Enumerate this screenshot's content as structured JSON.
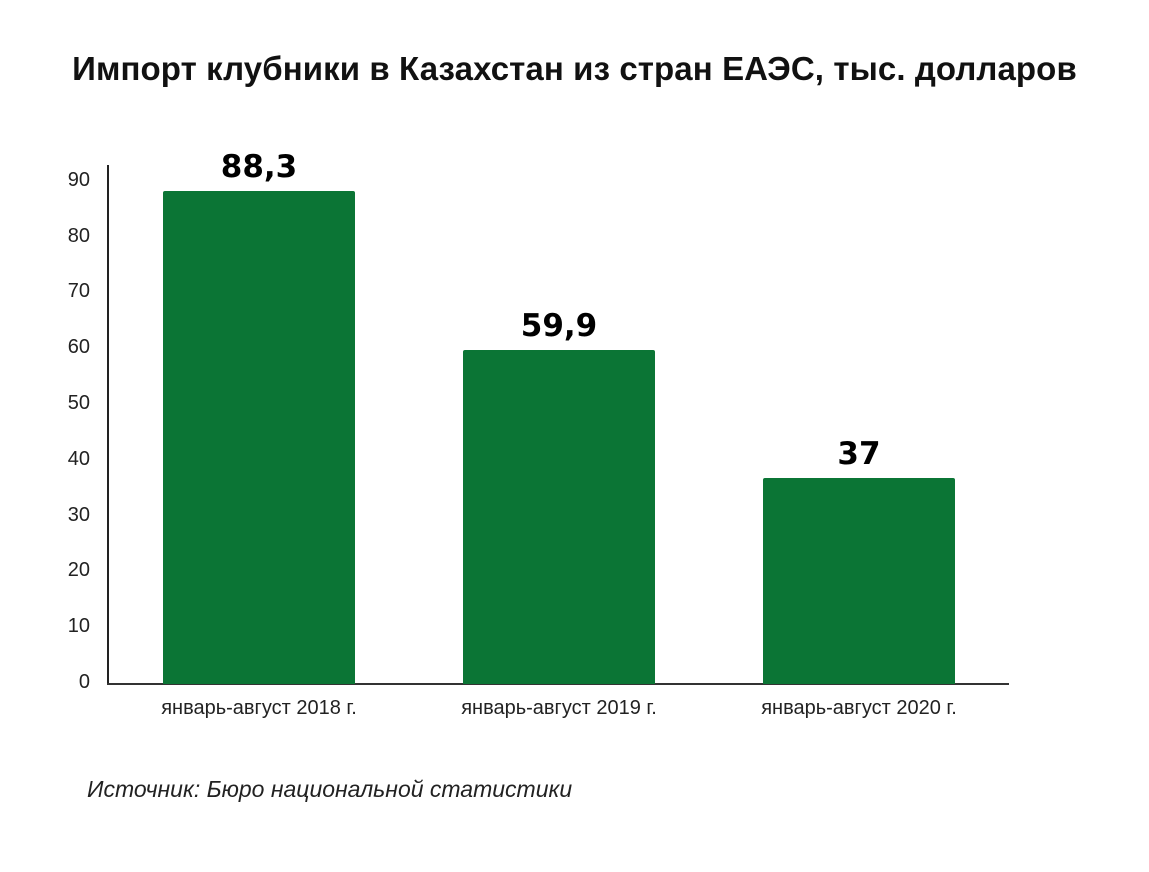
{
  "title": "Импорт клубники в Казахстан из стран ЕАЭС, тыс. долларов",
  "source": "Источник: Бюро национальной статистики",
  "colors": {
    "bar": "#0b7535",
    "axis": "#222222",
    "text": "#000000",
    "background": "#ffffff"
  },
  "y_ticks": [
    "0",
    "10",
    "20",
    "30",
    "40",
    "50",
    "60",
    "70",
    "80",
    "90"
  ],
  "bars": [
    {
      "category": "январь-август 2018 г.",
      "value": 88.3,
      "label": "88,3"
    },
    {
      "category": "январь-август 2019 г.",
      "value": 59.9,
      "label": "59,9"
    },
    {
      "category": "январь-август 2020 г.",
      "value": 37,
      "label": "37"
    }
  ],
  "chart_data": {
    "type": "bar",
    "title": "Импорт клубники в Казахстан из стран ЕАЭС, тыс. долларов",
    "categories": [
      "январь-август 2018 г.",
      "январь-август 2019 г.",
      "январь-август 2020 г."
    ],
    "values": [
      88.3,
      59.9,
      37
    ],
    "data_labels": [
      "88,3",
      "59,9",
      "37"
    ],
    "xlabel": "",
    "ylabel": "",
    "ylim": [
      0,
      90
    ],
    "y_ticks": [
      0,
      10,
      20,
      30,
      40,
      50,
      60,
      70,
      80,
      90
    ],
    "grid": false,
    "legend": null,
    "annotations": [
      "Источник: Бюро национальной статистики"
    ],
    "bar_color": "#0b7535"
  }
}
